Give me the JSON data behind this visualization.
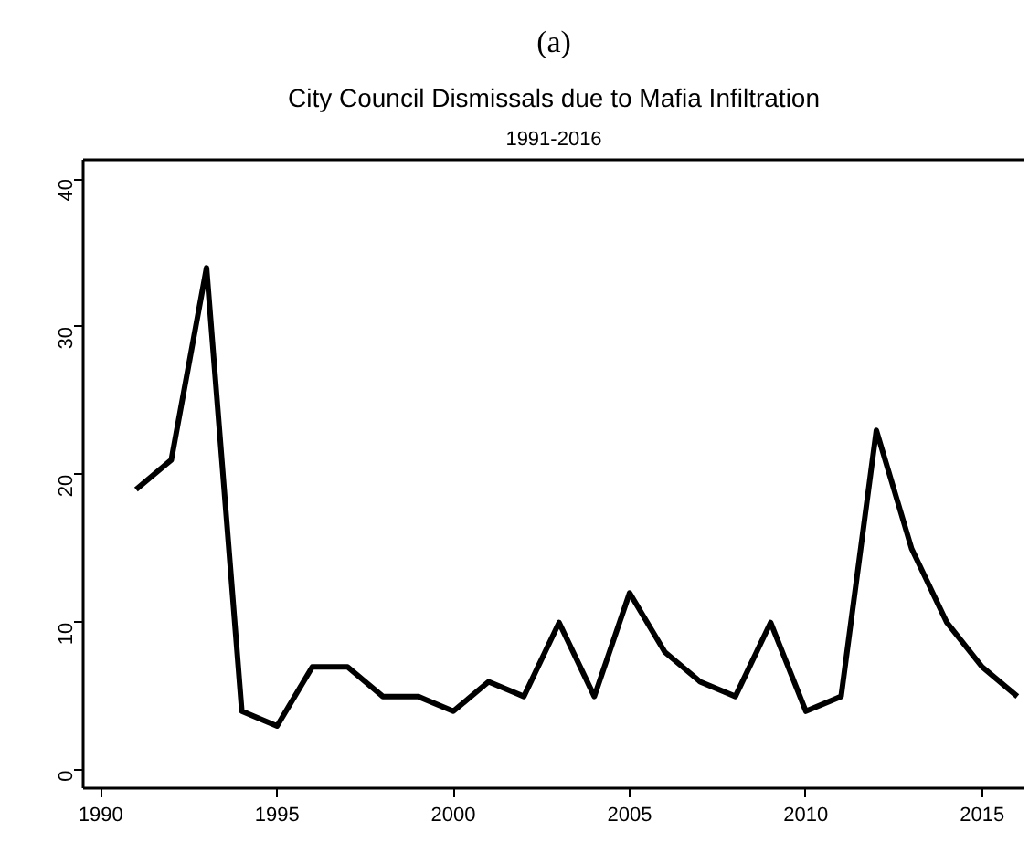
{
  "chart_data": {
    "type": "line",
    "title": "City Council Dismissals due to Mafia Infiltration",
    "subtitle": "1991-2016",
    "annotations": [
      "(a)"
    ],
    "x": [
      1991,
      1992,
      1993,
      1994,
      1995,
      1996,
      1997,
      1998,
      1999,
      2000,
      2001,
      2002,
      2003,
      2004,
      2005,
      2006,
      2007,
      2008,
      2009,
      2010,
      2011,
      2012,
      2013,
      2014,
      2015,
      2016
    ],
    "series": [
      {
        "color": "#000000",
        "values": [
          19,
          21,
          34,
          4,
          3,
          7,
          7,
          5,
          5,
          4,
          6,
          5,
          10,
          5,
          12,
          8,
          6,
          5,
          10,
          4,
          5,
          23,
          15,
          10,
          7,
          5
        ]
      }
    ],
    "xlim": [
      1989.5,
      2016.2
    ],
    "ylim": [
      -1.2,
      41.3
    ],
    "xticks": [
      1990,
      1995,
      2000,
      2005,
      2010,
      2015
    ],
    "yticks": [
      0,
      10,
      20,
      30,
      40
    ],
    "grid": false,
    "marker": "none",
    "line_style": "solid"
  }
}
